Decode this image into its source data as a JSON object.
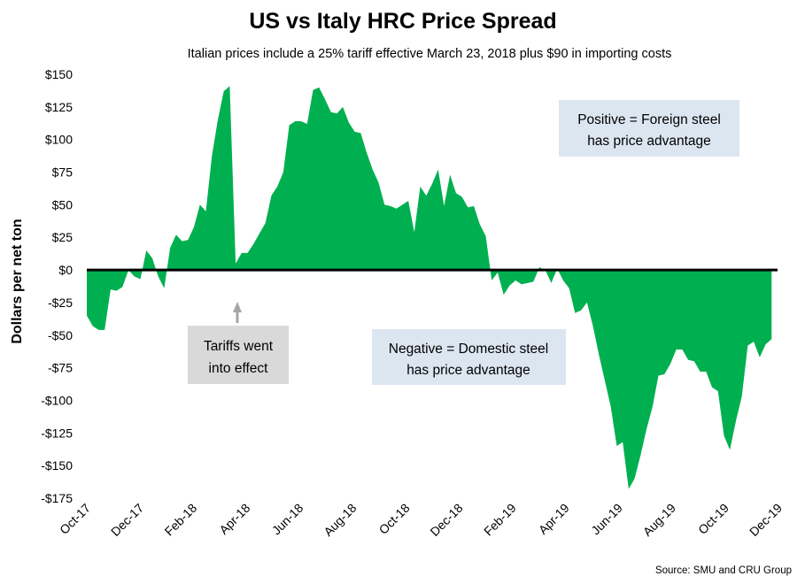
{
  "colors": {
    "area": "#00b050",
    "zero_line": "#000000",
    "arrow": "#a6a6a6",
    "tariff_box": "#d9d9d9",
    "info_box": "#dce6f1"
  },
  "chart_data": {
    "type": "area",
    "title": "US vs Italy HRC Price Spread",
    "subtitle": "Italian prices include a 25% tariff effective March 23, 2018 plus $90 in importing costs",
    "ylabel": "Dollars per net ton",
    "xlabel": "",
    "ylim": [
      -175,
      150
    ],
    "yticks": [
      150,
      125,
      100,
      75,
      50,
      25,
      0,
      -25,
      -50,
      -75,
      -100,
      -125,
      -150,
      -175
    ],
    "ytick_labels": [
      "$150",
      "$125",
      "$100",
      "$75",
      "$50",
      "$25",
      "$0",
      "-$25",
      "-$50",
      "-$75",
      "-$100",
      "-$125",
      "-$150",
      "-$175"
    ],
    "xtick_labels": [
      "Oct-17",
      "Dec-17",
      "Feb-18",
      "Apr-18",
      "Jun-18",
      "Aug-18",
      "Oct-18",
      "Dec-18",
      "Feb-19",
      "Apr-19",
      "Jun-19",
      "Aug-19",
      "Oct-19",
      "Dec-19"
    ],
    "x_unit": "weeks since start of Oct-17",
    "xlim": [
      0,
      116
    ],
    "series": [
      {
        "name": "US vs Italy HRC spread",
        "points": [
          [
            0,
            -35
          ],
          [
            1,
            -43
          ],
          [
            2,
            -46
          ],
          [
            3,
            -46
          ],
          [
            4,
            -15
          ],
          [
            5,
            -16
          ],
          [
            6,
            -13
          ],
          [
            7,
            0
          ],
          [
            8,
            -5
          ],
          [
            9,
            -7
          ],
          [
            10,
            15
          ],
          [
            11,
            9
          ],
          [
            12,
            -5
          ],
          [
            13,
            -14
          ],
          [
            14,
            17
          ],
          [
            15,
            27
          ],
          [
            16,
            22
          ],
          [
            17,
            23
          ],
          [
            18,
            33
          ],
          [
            19,
            50
          ],
          [
            20,
            45
          ],
          [
            21,
            87
          ],
          [
            22,
            115
          ],
          [
            23,
            137
          ],
          [
            24,
            141
          ],
          [
            25,
            5
          ],
          [
            26,
            13
          ],
          [
            27,
            13
          ],
          [
            28,
            20
          ],
          [
            29,
            28
          ],
          [
            30,
            36
          ],
          [
            31,
            57
          ],
          [
            32,
            64
          ],
          [
            33,
            75
          ],
          [
            34,
            111
          ],
          [
            35,
            114
          ],
          [
            36,
            114
          ],
          [
            37,
            112
          ],
          [
            38,
            138
          ],
          [
            39,
            140
          ],
          [
            40,
            131
          ],
          [
            41,
            121
          ],
          [
            42,
            120
          ],
          [
            43,
            125
          ],
          [
            44,
            113
          ],
          [
            45,
            106
          ],
          [
            46,
            105
          ],
          [
            47,
            90
          ],
          [
            48,
            77
          ],
          [
            49,
            67
          ],
          [
            50,
            50
          ],
          [
            51,
            49
          ],
          [
            52,
            47
          ],
          [
            53,
            50
          ],
          [
            54,
            53
          ],
          [
            55,
            29
          ],
          [
            56,
            64
          ],
          [
            57,
            57
          ],
          [
            58,
            66
          ],
          [
            59,
            77
          ],
          [
            60,
            49
          ],
          [
            61,
            73
          ],
          [
            62,
            59
          ],
          [
            63,
            56
          ],
          [
            64,
            48
          ],
          [
            65,
            49
          ],
          [
            66,
            35
          ],
          [
            67,
            26
          ],
          [
            68,
            -8
          ],
          [
            69,
            -2
          ],
          [
            70,
            -19
          ],
          [
            71,
            -12
          ],
          [
            72,
            -8
          ],
          [
            73,
            -11
          ],
          [
            74,
            -10
          ],
          [
            75,
            -9
          ],
          [
            76,
            2
          ],
          [
            77,
            0
          ],
          [
            78,
            -10
          ],
          [
            79,
            1
          ],
          [
            80,
            -8
          ],
          [
            81,
            -14
          ],
          [
            82,
            -33
          ],
          [
            83,
            -31
          ],
          [
            84,
            -25
          ],
          [
            85,
            -43
          ],
          [
            86,
            -65
          ],
          [
            87,
            -85
          ],
          [
            88,
            -105
          ],
          [
            89,
            -135
          ],
          [
            90,
            -132
          ],
          [
            91,
            -168
          ],
          [
            92,
            -160
          ],
          [
            93,
            -142
          ],
          [
            94,
            -122
          ],
          [
            95,
            -105
          ],
          [
            96,
            -81
          ],
          [
            97,
            -80
          ],
          [
            98,
            -72
          ],
          [
            99,
            -61
          ],
          [
            100,
            -61
          ],
          [
            101,
            -69
          ],
          [
            102,
            -70
          ],
          [
            103,
            -78
          ],
          [
            104,
            -78
          ],
          [
            105,
            -90
          ],
          [
            106,
            -93
          ],
          [
            107,
            -127
          ],
          [
            108,
            -138
          ],
          [
            109,
            -116
          ],
          [
            110,
            -97
          ],
          [
            111,
            -58
          ],
          [
            112,
            -55
          ],
          [
            113,
            -67
          ],
          [
            114,
            -57
          ],
          [
            115,
            -53
          ]
        ]
      }
    ],
    "annotations": [
      "Tariffs went into effect",
      "Positive = Foreign steel has price advantage",
      "Negative = Domestic steel has price advantage"
    ],
    "grid": false,
    "legend": "none"
  },
  "annotations": {
    "tariff": [
      "Tariffs went",
      "into effect"
    ],
    "positive": [
      "Positive = Foreign steel",
      "has price advantage"
    ],
    "negative": [
      "Negative = Domestic steel",
      "has price advantage"
    ]
  },
  "source": "Source: SMU and CRU Group"
}
